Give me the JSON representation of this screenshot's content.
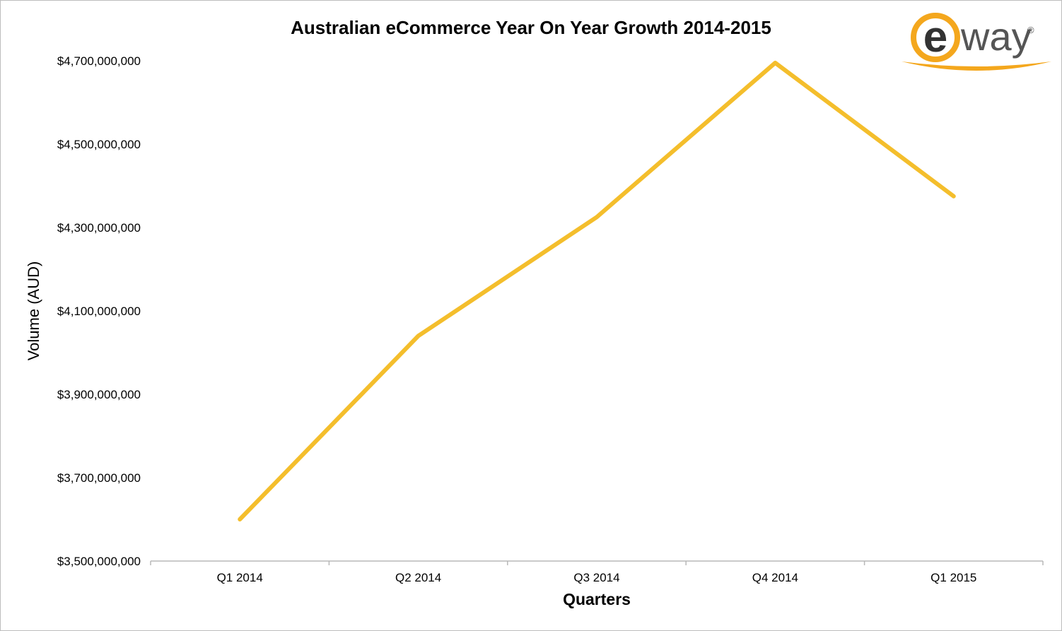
{
  "chart_data": {
    "type": "line",
    "title": "Australian eCommerce Year On Year Growth 2014-2015",
    "xlabel": "Quarters",
    "ylabel": "Volume (AUD)",
    "categories": [
      "Q1 2014",
      "Q2 2014",
      "Q3 2014",
      "Q4 2014",
      "Q1 2015"
    ],
    "series": [
      {
        "values": [
          3600000000,
          4040000000,
          4325000000,
          4695000000,
          4375000000
        ],
        "color": "#F4BE2C"
      }
    ],
    "ylim": [
      3500000000,
      4700000000
    ],
    "yticks": [
      3500000000,
      3700000000,
      3900000000,
      4100000000,
      4300000000,
      4500000000,
      4700000000
    ],
    "ytick_labels": [
      "$3,500,000,000",
      "$3,700,000,000",
      "$3,900,000,000",
      "$4,100,000,000",
      "$4,300,000,000",
      "$4,500,000,000",
      "$4,700,000,000"
    ],
    "grid": false,
    "legend": "none"
  },
  "logo": {
    "letter": "e",
    "text": "way",
    "mark": "®",
    "ring_color": "#F4A71D"
  }
}
